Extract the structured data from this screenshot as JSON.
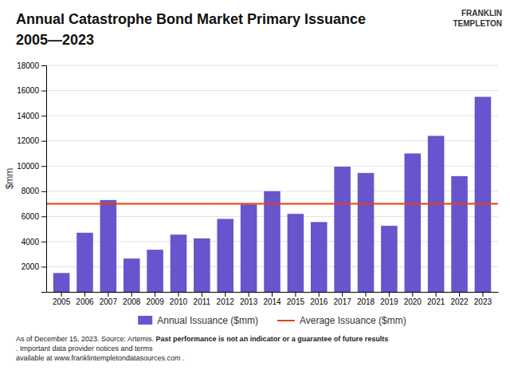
{
  "chart_data": {
    "type": "bar",
    "title": "Annual Catastrophe Bond Market Primary Issuance",
    "subtitle": "2005—2023",
    "branding": [
      "FRANKLIN",
      "TEMPLETON"
    ],
    "ylabel": "$mm",
    "categories": [
      "2005",
      "2006",
      "2007",
      "2008",
      "2009",
      "2010",
      "2011",
      "2012",
      "2013",
      "2014",
      "2015",
      "2016",
      "2017",
      "2018",
      "2019",
      "2020",
      "2021",
      "2022",
      "2023"
    ],
    "series": [
      {
        "name": "Annual Issuance ($mm)",
        "color": "#6655cc",
        "values": [
          1500,
          4700,
          7300,
          2650,
          3350,
          4550,
          4250,
          5800,
          6950,
          8000,
          6200,
          5550,
          9950,
          9450,
          5250,
          11000,
          12400,
          9200,
          15500
        ]
      }
    ],
    "average": {
      "name": "Average Issuance ($mm)",
      "value": 7000,
      "color": "#e84010"
    },
    "ylim": [
      0,
      18000
    ],
    "yticks": [
      2000,
      4000,
      6000,
      8000,
      10000,
      12000,
      14000,
      16000,
      18000
    ],
    "grid": true,
    "legend": "bottom",
    "footnote_line1": [
      "As of December 15, 2023. Source: Artemis. ",
      "Past performance is not an indicator or a guarantee of future results",
      ". Important data provider notices and terms"
    ],
    "footnote_line2": "available at www.franklintempletondatasources.com ."
  }
}
